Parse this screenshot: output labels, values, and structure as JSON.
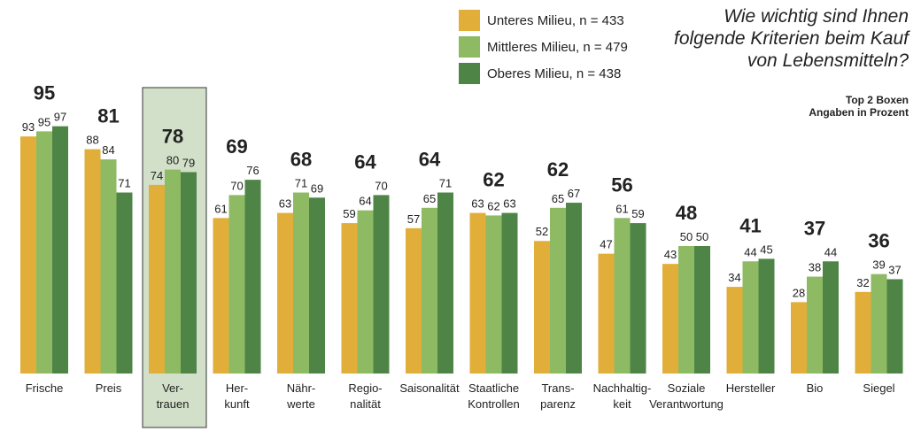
{
  "chart_data": {
    "type": "bar",
    "title": "Wie wichtig sind Ihnen folgende Kriterien beim Kauf von Lebensmitteln?",
    "subtitle_lines": [
      "Top 2 Boxen",
      "Angaben in Prozent"
    ],
    "categories": [
      [
        "Frische"
      ],
      [
        "Preis"
      ],
      [
        "Ver-",
        "trauen"
      ],
      [
        "Her-",
        "kunft"
      ],
      [
        "Nähr-",
        "werte"
      ],
      [
        "Regio-",
        "nalität"
      ],
      [
        "Saisonalität"
      ],
      [
        "Staatliche",
        "Kontrollen"
      ],
      [
        "Trans-",
        "parenz"
      ],
      [
        "Nachhaltig-",
        "keit"
      ],
      [
        "Soziale",
        "Verantwortung"
      ],
      [
        "Hersteller"
      ],
      [
        "Bio"
      ],
      [
        "Siegel"
      ]
    ],
    "totals": [
      95,
      81,
      78,
      69,
      68,
      64,
      64,
      62,
      62,
      56,
      48,
      41,
      37,
      36
    ],
    "highlighted_category_index": 2,
    "series": [
      {
        "name": "Unteres Milieu, n = 433",
        "color": "#e2ae3a",
        "values": [
          93,
          88,
          74,
          61,
          63,
          59,
          57,
          63,
          52,
          47,
          43,
          34,
          28,
          32
        ]
      },
      {
        "name": "Mittleres Milieu, n = 479",
        "color": "#8dba63",
        "values": [
          95,
          84,
          80,
          70,
          71,
          64,
          65,
          62,
          65,
          61,
          50,
          44,
          38,
          39
        ]
      },
      {
        "name": "Oberes Milieu, n = 438",
        "color": "#4e8547",
        "values": [
          97,
          71,
          79,
          76,
          69,
          70,
          71,
          63,
          67,
          59,
          50,
          45,
          44,
          37
        ]
      }
    ],
    "ylim": [
      0,
      100
    ],
    "grid": false,
    "legend_position": "top-center",
    "highlight_color": "#d2e0c9"
  }
}
